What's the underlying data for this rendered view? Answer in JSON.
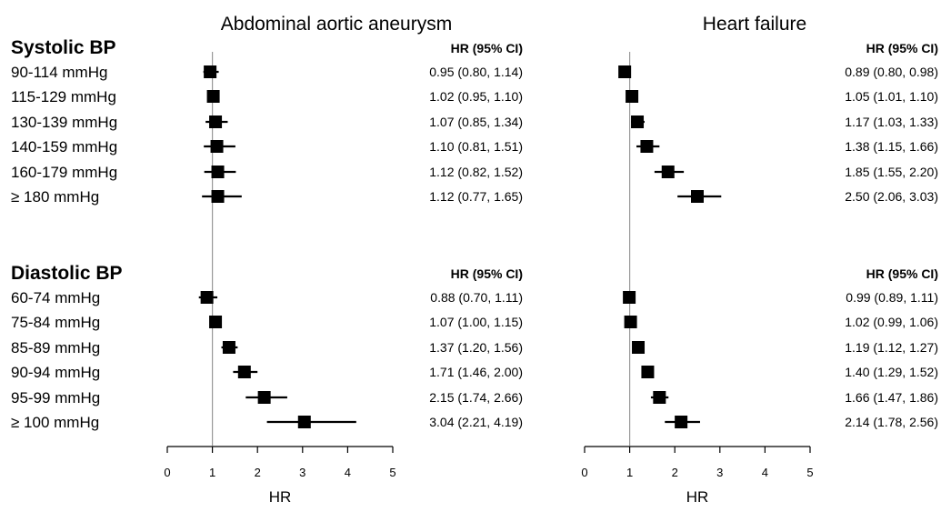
{
  "panel_titles": [
    "Abdominal aortic aneurysm",
    "Heart failure"
  ],
  "sections": [
    {
      "title": "Systolic BP",
      "rows": [
        "90-114 mmHg",
        "115-129 mmHg",
        "130-139 mmHg",
        "140-159 mmHg",
        "160-179 mmHg",
        "≥ 180 mmHg"
      ]
    },
    {
      "title": "Diastolic BP",
      "rows": [
        "60-74 mmHg",
        "75-84 mmHg",
        "85-89 mmHg",
        "90-94 mmHg",
        "95-99 mmHg",
        "≥ 100 mmHg"
      ]
    }
  ],
  "hr_header": "HR (95% CI)",
  "chart_data": [
    {
      "type": "scatter",
      "title": "Abdominal aortic aneurysm",
      "xlabel": "HR",
      "xlim": [
        0,
        5
      ],
      "xticks": [
        "0",
        "1",
        "2",
        "3",
        "4",
        "5"
      ],
      "reference_line": 1,
      "sections": [
        {
          "name": "Systolic BP",
          "points": [
            {
              "label": "90-114 mmHg",
              "hr": 0.95,
              "lo": 0.8,
              "hi": 1.14,
              "text": "0.95 (0.80, 1.14)"
            },
            {
              "label": "115-129 mmHg",
              "hr": 1.02,
              "lo": 0.95,
              "hi": 1.1,
              "text": "1.02 (0.95, 1.10)"
            },
            {
              "label": "130-139 mmHg",
              "hr": 1.07,
              "lo": 0.85,
              "hi": 1.34,
              "text": "1.07 (0.85, 1.34)"
            },
            {
              "label": "140-159 mmHg",
              "hr": 1.1,
              "lo": 0.81,
              "hi": 1.51,
              "text": "1.10 (0.81, 1.51)"
            },
            {
              "label": "160-179 mmHg",
              "hr": 1.12,
              "lo": 0.82,
              "hi": 1.52,
              "text": "1.12 (0.82, 1.52)"
            },
            {
              "label": "≥ 180 mmHg",
              "hr": 1.12,
              "lo": 0.77,
              "hi": 1.65,
              "text": "1.12 (0.77, 1.65)"
            }
          ]
        },
        {
          "name": "Diastolic BP",
          "points": [
            {
              "label": "60-74 mmHg",
              "hr": 0.88,
              "lo": 0.7,
              "hi": 1.11,
              "text": "0.88 (0.70, 1.11)"
            },
            {
              "label": "75-84 mmHg",
              "hr": 1.07,
              "lo": 1.0,
              "hi": 1.15,
              "text": "1.07 (1.00, 1.15)"
            },
            {
              "label": "85-89 mmHg",
              "hr": 1.37,
              "lo": 1.2,
              "hi": 1.56,
              "text": "1.37 (1.20, 1.56)"
            },
            {
              "label": "90-94 mmHg",
              "hr": 1.71,
              "lo": 1.46,
              "hi": 2.0,
              "text": "1.71 (1.46, 2.00)"
            },
            {
              "label": "95-99 mmHg",
              "hr": 2.15,
              "lo": 1.74,
              "hi": 2.66,
              "text": "2.15 (1.74, 2.66)"
            },
            {
              "label": "≥ 100 mmHg",
              "hr": 3.04,
              "lo": 2.21,
              "hi": 4.19,
              "text": "3.04 (2.21, 4.19)"
            }
          ]
        }
      ]
    },
    {
      "type": "scatter",
      "title": "Heart failure",
      "xlabel": "HR",
      "xlim": [
        0,
        5
      ],
      "xticks": [
        "0",
        "1",
        "2",
        "3",
        "4",
        "5"
      ],
      "reference_line": 1,
      "sections": [
        {
          "name": "Systolic BP",
          "points": [
            {
              "label": "90-114 mmHg",
              "hr": 0.89,
              "lo": 0.8,
              "hi": 0.98,
              "text": "0.89 (0.80, 0.98)"
            },
            {
              "label": "115-129 mmHg",
              "hr": 1.05,
              "lo": 1.01,
              "hi": 1.1,
              "text": "1.05 (1.01, 1.10)"
            },
            {
              "label": "130-139 mmHg",
              "hr": 1.17,
              "lo": 1.03,
              "hi": 1.33,
              "text": "1.17 (1.03, 1.33)"
            },
            {
              "label": "140-159 mmHg",
              "hr": 1.38,
              "lo": 1.15,
              "hi": 1.66,
              "text": "1.38 (1.15, 1.66)"
            },
            {
              "label": "160-179 mmHg",
              "hr": 1.85,
              "lo": 1.55,
              "hi": 2.2,
              "text": "1.85 (1.55, 2.20)"
            },
            {
              "label": "≥ 180 mmHg",
              "hr": 2.5,
              "lo": 2.06,
              "hi": 3.03,
              "text": "2.50 (2.06, 3.03)"
            }
          ]
        },
        {
          "name": "Diastolic BP",
          "points": [
            {
              "label": "60-74 mmHg",
              "hr": 0.99,
              "lo": 0.89,
              "hi": 1.11,
              "text": "0.99 (0.89, 1.11)"
            },
            {
              "label": "75-84 mmHg",
              "hr": 1.02,
              "lo": 0.99,
              "hi": 1.06,
              "text": "1.02 (0.99, 1.06)"
            },
            {
              "label": "85-89 mmHg",
              "hr": 1.19,
              "lo": 1.12,
              "hi": 1.27,
              "text": "1.19 (1.12, 1.27)"
            },
            {
              "label": "90-94 mmHg",
              "hr": 1.4,
              "lo": 1.29,
              "hi": 1.52,
              "text": "1.40 (1.29, 1.52)"
            },
            {
              "label": "95-99 mmHg",
              "hr": 1.66,
              "lo": 1.47,
              "hi": 1.86,
              "text": "1.66 (1.47, 1.86)"
            },
            {
              "label": "≥ 100 mmHg",
              "hr": 2.14,
              "lo": 1.78,
              "hi": 2.56,
              "text": "2.14 (1.78, 2.56)"
            }
          ]
        }
      ]
    }
  ]
}
